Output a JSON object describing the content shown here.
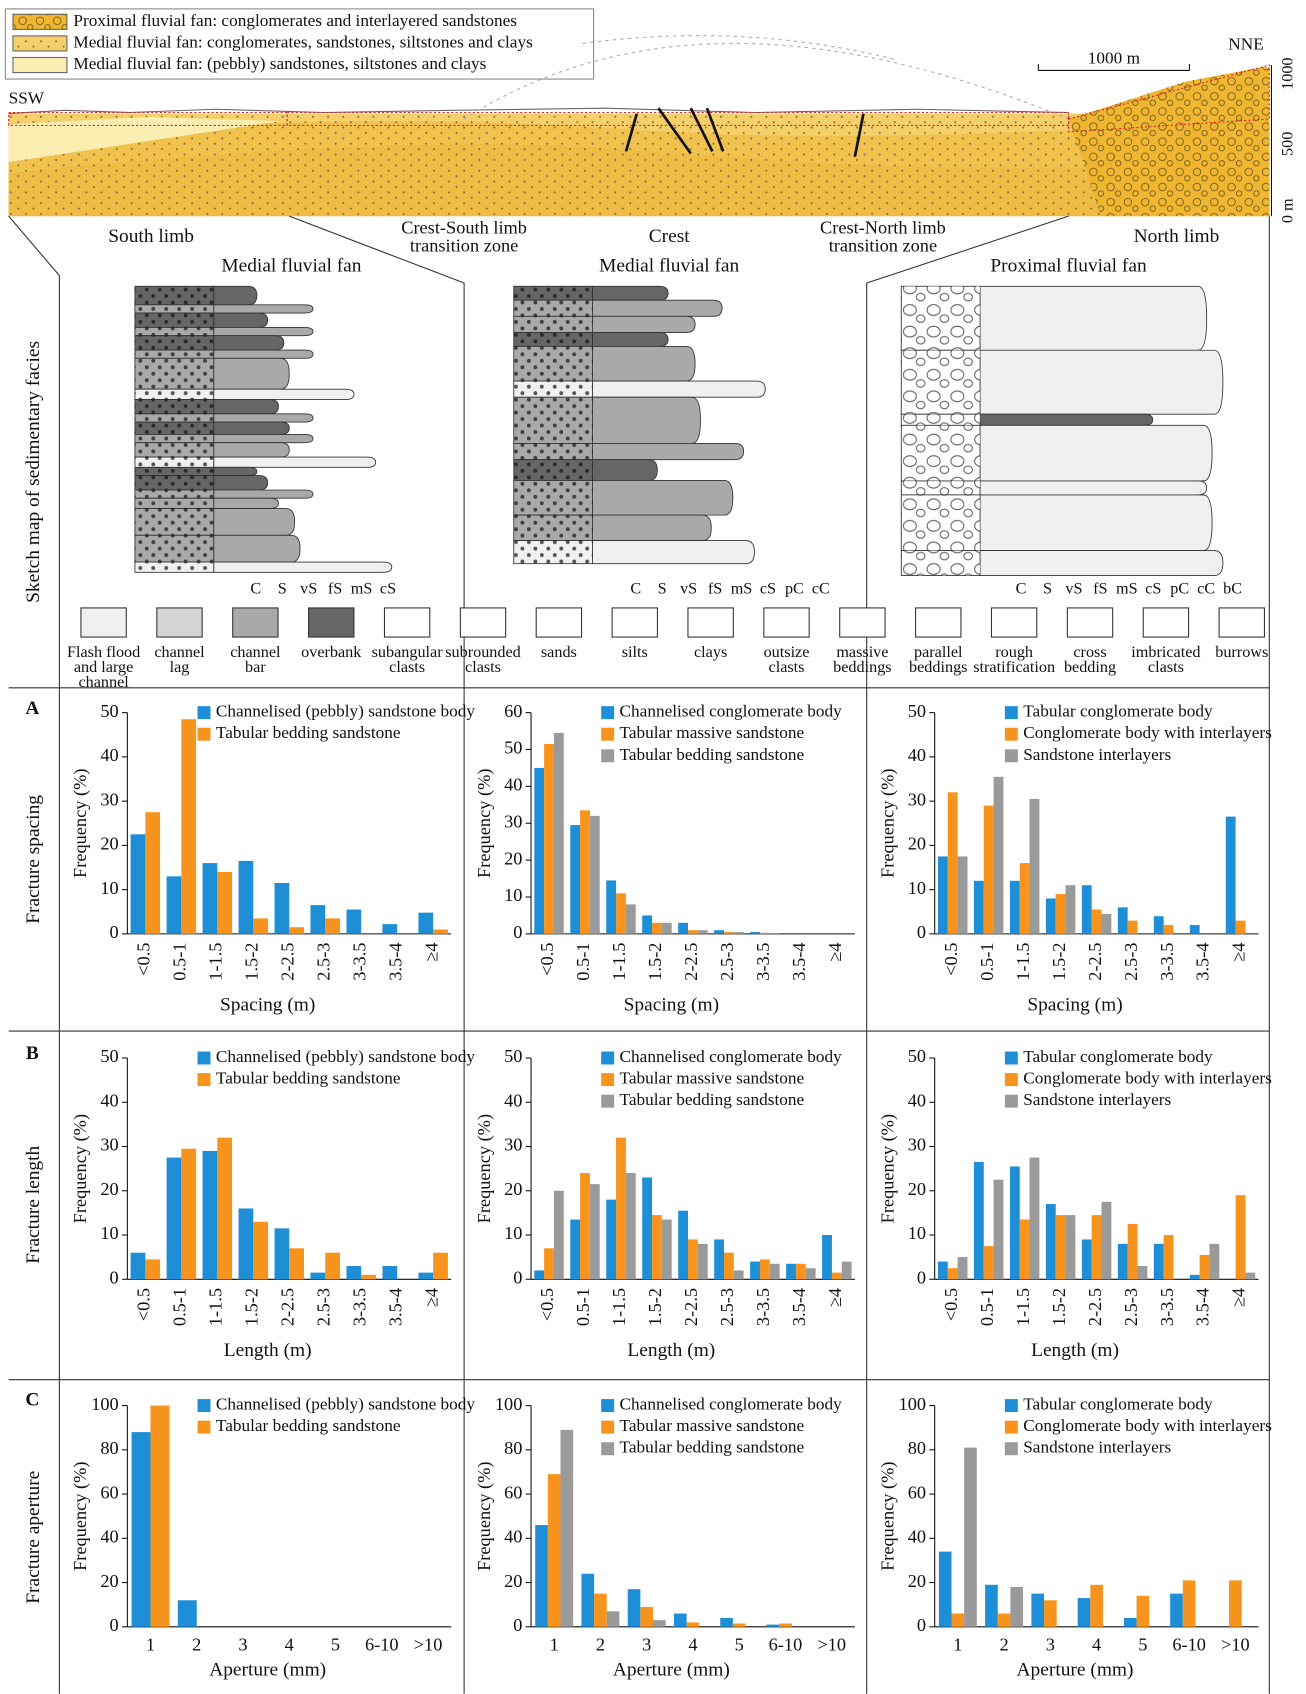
{
  "legend": [
    "Proximal fluvial fan: conglomerates and interlayered sandstones",
    "Medial fluvial fan: conglomerates, sandstones, siltstones and clays",
    "Medial fluvial fan: (pebbly) sandstones, siltstones and clays"
  ],
  "section": {
    "left": "SSW",
    "right": "NNE",
    "scale": "1000 m",
    "elevations": [
      "1000",
      "500",
      "0 m"
    ]
  },
  "sketch_title": "Sketch map of sedimentary facies",
  "zones": [
    {
      "name": "South limb",
      "facies": "Medial fluvial fan",
      "grain_sizes": [
        "C",
        "S",
        "vS",
        "fS",
        "mS",
        "cS"
      ]
    },
    {
      "name": "Crest",
      "facies": "Medial fluvial fan",
      "grain_sizes": [
        "C",
        "S",
        "vS",
        "fS",
        "mS",
        "cS",
        "pC",
        "cC"
      ]
    },
    {
      "name": "North limb",
      "facies": "Proximal fluvial fan",
      "grain_sizes": [
        "C",
        "S",
        "vS",
        "fS",
        "mS",
        "cS",
        "pC",
        "cC",
        "bC"
      ]
    }
  ],
  "transitions": [
    [
      "Crest-South limb",
      "transition zone"
    ],
    [
      "Crest-North limb",
      "transition zone"
    ]
  ],
  "facies_legend": [
    [
      "Flash flood",
      "and large",
      "channel"
    ],
    [
      "channel",
      "lag"
    ],
    [
      "channel",
      "bar"
    ],
    [
      "overbank"
    ],
    [
      "subangular",
      "clasts"
    ],
    [
      "subrounded",
      "clasts"
    ],
    [
      "sands"
    ],
    [
      "silts"
    ],
    [
      "clays"
    ],
    [
      "outsize",
      "clasts"
    ],
    [
      "massive",
      "beddings"
    ],
    [
      "parallel",
      "beddings"
    ],
    [
      "rough",
      "stratification"
    ],
    [
      "cross",
      "bedding"
    ],
    [
      "imbricated",
      "clasts"
    ],
    [
      "burrows"
    ]
  ],
  "rows": [
    {
      "label": "A",
      "title": "Fracture spacing"
    },
    {
      "label": "B",
      "title": "Fracture length"
    },
    {
      "label": "C",
      "title": "Fracture aperture"
    }
  ],
  "chart_data": [
    {
      "type": "bar",
      "x_label": "Spacing (m)",
      "y_label": "Frequency (%)",
      "categories": [
        "<0.5",
        "0.5-1",
        "1-1.5",
        "1.5-2",
        "2-2.5",
        "2.5-3",
        "3-3.5",
        "3.5-4",
        "≥4"
      ],
      "ylim": [
        0,
        50
      ],
      "yticks": [
        0,
        10,
        20,
        30,
        40,
        50
      ],
      "series": [
        {
          "name": "Channelised (pebbly) sandstone body",
          "color": "#1e8fd6",
          "values": [
            22.5,
            13,
            16,
            16.5,
            11.5,
            6.5,
            5.5,
            2.2,
            4.8
          ]
        },
        {
          "name": "Tabular bedding sandstone",
          "color": "#f7941d",
          "values": [
            27.5,
            48.5,
            14,
            3.5,
            1.5,
            3.5,
            0,
            0,
            1
          ]
        }
      ]
    },
    {
      "type": "bar",
      "x_label": "Spacing (m)",
      "y_label": "Frequency (%)",
      "categories": [
        "<0.5",
        "0.5-1",
        "1-1.5",
        "1.5-2",
        "2-2.5",
        "2.5-3",
        "3-3.5",
        "3.5-4",
        "≥4"
      ],
      "ylim": [
        0,
        60
      ],
      "yticks": [
        0,
        10,
        20,
        30,
        40,
        50,
        60
      ],
      "series": [
        {
          "name": "Channelised conglomerate body",
          "color": "#1e8fd6",
          "values": [
            45,
            29.5,
            14.5,
            5,
            3,
            1,
            0.5,
            0,
            0
          ]
        },
        {
          "name": "Tabular massive sandstone",
          "color": "#f7941d",
          "values": [
            51.5,
            33.5,
            11,
            3,
            1,
            0.5,
            0.3,
            0,
            0
          ]
        },
        {
          "name": "Tabular bedding sandstone",
          "color": "#9a9a9a",
          "values": [
            54.5,
            32,
            8,
            3,
            1,
            0.5,
            0.2,
            0,
            0
          ]
        }
      ]
    },
    {
      "type": "bar",
      "x_label": "Spacing (m)",
      "y_label": "Frequency (%)",
      "categories": [
        "<0.5",
        "0.5-1",
        "1-1.5",
        "1.5-2",
        "2-2.5",
        "2.5-3",
        "3-3.5",
        "3.5-4",
        "≥4"
      ],
      "ylim": [
        0,
        50
      ],
      "yticks": [
        0,
        10,
        20,
        30,
        40,
        50
      ],
      "series": [
        {
          "name": "Tabular conglomerate body",
          "color": "#1e8fd6",
          "values": [
            17.5,
            12,
            12,
            8,
            11,
            6,
            4,
            2,
            26.5
          ]
        },
        {
          "name": "Conglomerate body with interlayers",
          "color": "#f7941d",
          "values": [
            32,
            29,
            16,
            9,
            5.5,
            3,
            2,
            0,
            3
          ]
        },
        {
          "name": "Sandstone interlayers",
          "color": "#9a9a9a",
          "values": [
            17.5,
            35.5,
            30.5,
            11,
            4.5,
            0,
            0,
            0,
            0
          ]
        }
      ]
    },
    {
      "type": "bar",
      "x_label": "Length (m)",
      "y_label": "Frequency (%)",
      "categories": [
        "<0.5",
        "0.5-1",
        "1-1.5",
        "1.5-2",
        "2-2.5",
        "2.5-3",
        "3-3.5",
        "3.5-4",
        "≥4"
      ],
      "ylim": [
        0,
        50
      ],
      "yticks": [
        0,
        10,
        20,
        30,
        40,
        50
      ],
      "series": [
        {
          "name": "Channelised (pebbly) sandstone body",
          "color": "#1e8fd6",
          "values": [
            6,
            27.5,
            29,
            16,
            11.5,
            1.5,
            3,
            3,
            1.5
          ]
        },
        {
          "name": "Tabular bedding sandstone",
          "color": "#f7941d",
          "values": [
            4.5,
            29.5,
            32,
            13,
            7,
            6,
            1,
            0,
            6
          ]
        }
      ]
    },
    {
      "type": "bar",
      "x_label": "Length (m)",
      "y_label": "Frequency (%)",
      "categories": [
        "<0.5",
        "0.5-1",
        "1-1.5",
        "1.5-2",
        "2-2.5",
        "2.5-3",
        "3-3.5",
        "3.5-4",
        "≥4"
      ],
      "ylim": [
        0,
        50
      ],
      "yticks": [
        0,
        10,
        20,
        30,
        40,
        50
      ],
      "series": [
        {
          "name": "Channelised conglomerate body",
          "color": "#1e8fd6",
          "values": [
            2,
            13.5,
            18,
            23,
            15.5,
            9,
            4,
            3.5,
            10
          ]
        },
        {
          "name": "Tabular massive sandstone",
          "color": "#f7941d",
          "values": [
            7,
            24,
            32,
            14.5,
            9,
            6,
            4.5,
            3.5,
            1.5
          ]
        },
        {
          "name": "Tabular bedding sandstone",
          "color": "#9a9a9a",
          "values": [
            20,
            21.5,
            24,
            13.5,
            8,
            2,
            3.5,
            2.5,
            4
          ]
        }
      ]
    },
    {
      "type": "bar",
      "x_label": "Length (m)",
      "y_label": "Frequency (%)",
      "categories": [
        "<0.5",
        "0.5-1",
        "1-1.5",
        "1.5-2",
        "2-2.5",
        "2.5-3",
        "3-3.5",
        "3.5-4",
        "≥4"
      ],
      "ylim": [
        0,
        50
      ],
      "yticks": [
        0,
        10,
        20,
        30,
        40,
        50
      ],
      "series": [
        {
          "name": "Tabular conglomerate body",
          "color": "#1e8fd6",
          "values": [
            4,
            26.5,
            25.5,
            17,
            9,
            8,
            8,
            1,
            0
          ]
        },
        {
          "name": "Conglomerate body with interlayers",
          "color": "#f7941d",
          "values": [
            2.5,
            7.5,
            13.5,
            14.5,
            14.5,
            12.5,
            10,
            5.5,
            19
          ]
        },
        {
          "name": "Sandstone interlayers",
          "color": "#9a9a9a",
          "values": [
            5,
            22.5,
            27.5,
            14.5,
            17.5,
            3,
            0,
            8,
            1.5
          ]
        }
      ]
    },
    {
      "type": "bar",
      "x_label": "Aperture (mm)",
      "y_label": "Frequency (%)",
      "categories": [
        "1",
        "2",
        "3",
        "4",
        "5",
        "6-10",
        ">10"
      ],
      "ylim": [
        0,
        100
      ],
      "yticks": [
        0,
        20,
        40,
        60,
        80,
        100
      ],
      "series": [
        {
          "name": "Channelised (pebbly) sandstone body",
          "color": "#1e8fd6",
          "values": [
            88,
            12,
            0,
            0,
            0,
            0,
            0
          ]
        },
        {
          "name": "Tabular bedding sandstone",
          "color": "#f7941d",
          "values": [
            100,
            0,
            0,
            0,
            0,
            0,
            0
          ]
        }
      ]
    },
    {
      "type": "bar",
      "x_label": "Aperture (mm)",
      "y_label": "Frequency (%)",
      "categories": [
        "1",
        "2",
        "3",
        "4",
        "5",
        "6-10",
        ">10"
      ],
      "ylim": [
        0,
        100
      ],
      "yticks": [
        0,
        20,
        40,
        60,
        80,
        100
      ],
      "series": [
        {
          "name": "Channelised conglomerate body",
          "color": "#1e8fd6",
          "values": [
            46,
            24,
            17,
            6,
            4,
            1,
            0
          ]
        },
        {
          "name": "Tabular massive sandstone",
          "color": "#f7941d",
          "values": [
            69,
            15,
            9,
            2,
            1.5,
            1.5,
            0
          ]
        },
        {
          "name": "Tabular bedding sandstone",
          "color": "#9a9a9a",
          "values": [
            89,
            7,
            3,
            0,
            0,
            0,
            0
          ]
        }
      ]
    },
    {
      "type": "bar",
      "x_label": "Aperture (mm)",
      "y_label": "Frequency (%)",
      "categories": [
        "1",
        "2",
        "3",
        "4",
        "5",
        "6-10",
        ">10"
      ],
      "ylim": [
        0,
        100
      ],
      "yticks": [
        0,
        20,
        40,
        60,
        80,
        100
      ],
      "series": [
        {
          "name": "Tabular conglomerate body",
          "color": "#1e8fd6",
          "values": [
            34,
            19,
            15,
            13,
            4,
            15,
            0
          ]
        },
        {
          "name": "Conglomerate body with interlayers",
          "color": "#f7941d",
          "values": [
            6,
            6,
            12,
            19,
            14,
            21,
            21
          ]
        },
        {
          "name": "Sandstone interlayers",
          "color": "#9a9a9a",
          "values": [
            81,
            18,
            0,
            0,
            0,
            0,
            0
          ]
        }
      ]
    }
  ]
}
